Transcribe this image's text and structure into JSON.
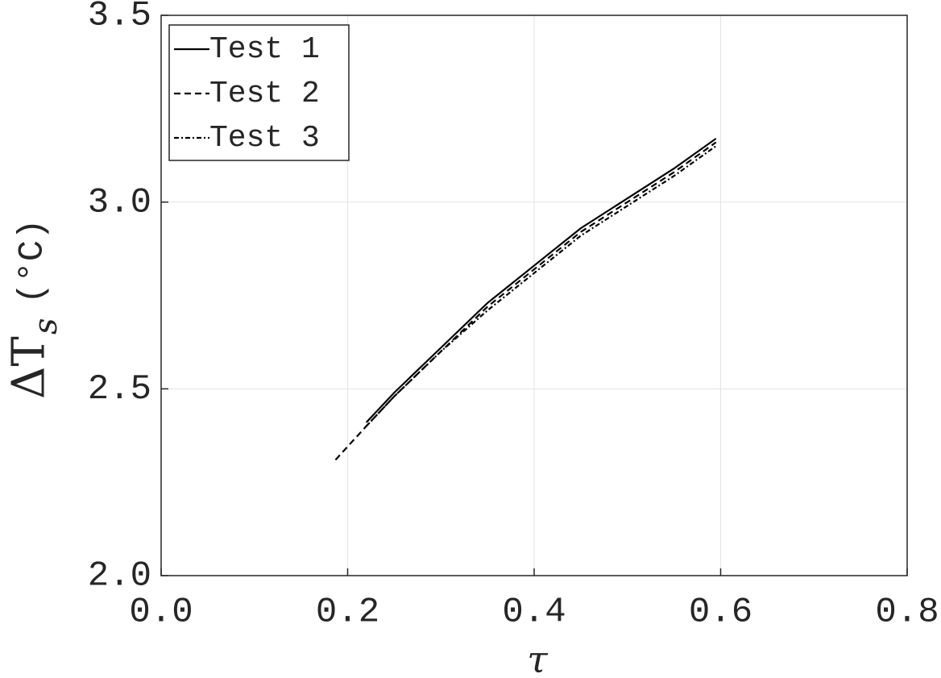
{
  "chart_data": {
    "type": "line",
    "xlabel": "τ",
    "ylabel": "ΔT",
    "ylabel_sub": "s",
    "ylabel_unit": "(°C)",
    "xlim": [
      0,
      0.8
    ],
    "ylim": [
      2.0,
      3.5
    ],
    "xticks": [
      {
        "value": 0,
        "label": "0.0"
      },
      {
        "value": 0.2,
        "label": "0.2"
      },
      {
        "value": 0.4,
        "label": "0.4"
      },
      {
        "value": 0.6,
        "label": "0.6"
      },
      {
        "value": 0.8,
        "label": "0.8"
      }
    ],
    "yticks": [
      {
        "value": 2,
        "label": "2.0"
      },
      2.5,
      {
        "value": 3,
        "label": "3.0"
      },
      3.5
    ],
    "grid": true,
    "legend": "upper-left",
    "series": [
      {
        "name": "Test 1",
        "color": "#000000",
        "dash": "none",
        "x": [
          0.22,
          0.25,
          0.3,
          0.35,
          0.4,
          0.45,
          0.5,
          0.55,
          0.595
        ],
        "values": [
          2.41,
          2.49,
          2.61,
          2.73,
          2.83,
          2.93,
          3.01,
          3.09,
          3.17
        ]
      },
      {
        "name": "Test 2",
        "color": "#000000",
        "dash": "8 5",
        "x": [
          0.187,
          0.22,
          0.25,
          0.3,
          0.35,
          0.4,
          0.45,
          0.5,
          0.55,
          0.595
        ],
        "values": [
          2.31,
          2.4,
          2.48,
          2.6,
          2.72,
          2.82,
          2.92,
          3.0,
          3.08,
          3.16
        ]
      },
      {
        "name": "Test 3",
        "color": "#000000",
        "dash": "6 3 2 3",
        "x": [
          0.22,
          0.25,
          0.3,
          0.35,
          0.37,
          0.4,
          0.45,
          0.5,
          0.55,
          0.595
        ],
        "values": [
          2.4,
          2.48,
          2.6,
          2.71,
          2.75,
          2.81,
          2.91,
          2.99,
          3.07,
          3.15
        ]
      }
    ]
  }
}
